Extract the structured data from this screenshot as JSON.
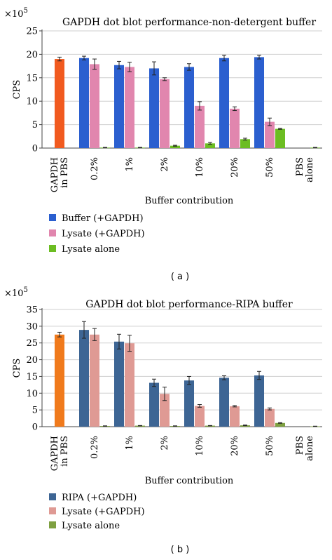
{
  "chart_data": [
    {
      "type": "bar",
      "title": "GAPDH dot blot performance-non-detergent buffer",
      "ylabel": "CPS",
      "xlabel": "Buffer contribution",
      "y_multiplier": "×10",
      "y_exponent": "5",
      "ylim": [
        0,
        25
      ],
      "yticks": [
        0,
        5,
        10,
        15,
        20,
        25
      ],
      "panel_label": "( a )",
      "categories": [
        [
          "GAPDH",
          "in PBS"
        ],
        [
          "0.2%"
        ],
        [
          "1%"
        ],
        [
          "2%"
        ],
        [
          "10%"
        ],
        [
          "20%"
        ],
        [
          "50%"
        ],
        [
          "PBS",
          "alone"
        ]
      ],
      "single_bar": {
        "category_index": 0,
        "value": 19.0,
        "color": "#f15a1f"
      },
      "series": [
        {
          "name": "Buffer (+GAPDH)",
          "color": "#2b5fcf",
          "values": [
            null,
            19.2,
            17.7,
            17.0,
            17.3,
            19.2,
            19.4,
            null
          ],
          "errors": [
            null,
            0.4,
            0.8,
            1.4,
            0.7,
            0.6,
            0.4,
            null
          ]
        },
        {
          "name": "Lysate (+GAPDH)",
          "color": "#e186ae",
          "values": [
            null,
            17.9,
            17.3,
            14.7,
            9.0,
            8.4,
            5.6,
            null
          ],
          "errors": [
            null,
            1.1,
            1.0,
            0.3,
            0.9,
            0.4,
            0.8,
            null
          ]
        },
        {
          "name": "Lysate alone",
          "color": "#6cbd22",
          "values": [
            null,
            0.1,
            0.1,
            0.5,
            1.0,
            1.9,
            4.1,
            0.1
          ],
          "errors": [
            null,
            0.05,
            0.05,
            0.1,
            0.2,
            0.2,
            0.1,
            0.05
          ]
        }
      ]
    },
    {
      "type": "bar",
      "title": "GAPDH dot blot performance-RIPA buffer",
      "ylabel": "CPS",
      "xlabel": "Buffer contribution",
      "y_multiplier": "×10",
      "y_exponent": "5",
      "ylim": [
        0,
        35
      ],
      "yticks": [
        0,
        5,
        10,
        15,
        20,
        25,
        30,
        35
      ],
      "panel_label": "( b )",
      "categories": [
        [
          "GAPDH",
          "in PBS"
        ],
        [
          "0.2%"
        ],
        [
          "1%"
        ],
        [
          "2%"
        ],
        [
          "10%"
        ],
        [
          "20%"
        ],
        [
          "50%"
        ],
        [
          "PBS",
          "alone"
        ]
      ],
      "single_bar": {
        "category_index": 0,
        "value": 27.5,
        "color": "#f07a1c"
      },
      "series": [
        {
          "name": "RIPA (+GAPDH)",
          "color": "#3d6594",
          "values": [
            null,
            28.9,
            25.4,
            13.1,
            13.8,
            14.6,
            15.3,
            null
          ],
          "errors": [
            null,
            2.5,
            2.2,
            1.1,
            1.2,
            0.6,
            1.2,
            null
          ]
        },
        {
          "name": "Lysate (+GAPDH)",
          "color": "#df9a94",
          "values": [
            null,
            27.5,
            24.9,
            9.8,
            6.2,
            6.1,
            5.3,
            null
          ],
          "errors": [
            null,
            1.8,
            2.4,
            2.0,
            0.4,
            0.2,
            0.3,
            null
          ]
        },
        {
          "name": "Lysate alone",
          "color": "#7ea041",
          "values": [
            null,
            0.2,
            0.3,
            0.2,
            0.3,
            0.4,
            1.1,
            0.1
          ],
          "errors": [
            null,
            0.05,
            0.05,
            0.05,
            0.05,
            0.1,
            0.1,
            0.05
          ]
        }
      ]
    }
  ]
}
